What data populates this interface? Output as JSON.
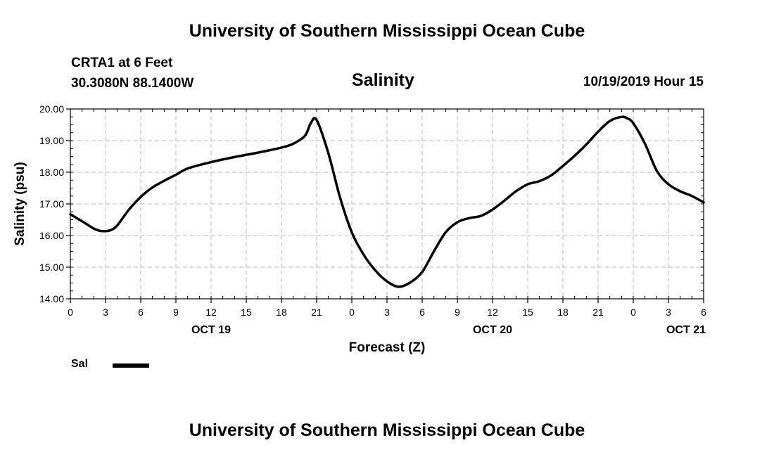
{
  "header": {
    "org_title": "University of Southern Mississippi Ocean Cube",
    "station_name": "CRTA1 at 6 Feet",
    "station_coords": "30.3080N 88.1400W",
    "chart_title": "Salinity",
    "issue_time": "10/19/2019 Hour 15"
  },
  "footer": {
    "org_title": "University of Southern Mississippi Ocean Cube"
  },
  "legend": {
    "label": "Sal"
  },
  "chart_data": {
    "type": "line",
    "title": "Salinity",
    "xlabel": "Forecast (Z)",
    "ylabel": "Salinity (psu)",
    "xlim": [
      0,
      54
    ],
    "ylim": [
      14.0,
      20.0
    ],
    "grid": true,
    "y_ticks": [
      "14.00",
      "15.00",
      "16.00",
      "17.00",
      "18.00",
      "19.00",
      "20.00"
    ],
    "x_ticks": [
      {
        "hour": 0,
        "label": "0"
      },
      {
        "hour": 3,
        "label": "3"
      },
      {
        "hour": 6,
        "label": "6"
      },
      {
        "hour": 9,
        "label": "9"
      },
      {
        "hour": 12,
        "label": "12"
      },
      {
        "hour": 15,
        "label": "15"
      },
      {
        "hour": 18,
        "label": "18"
      },
      {
        "hour": 21,
        "label": "21"
      },
      {
        "hour": 24,
        "label": "0"
      },
      {
        "hour": 27,
        "label": "3"
      },
      {
        "hour": 30,
        "label": "6"
      },
      {
        "hour": 33,
        "label": "9"
      },
      {
        "hour": 36,
        "label": "12"
      },
      {
        "hour": 39,
        "label": "15"
      },
      {
        "hour": 42,
        "label": "18"
      },
      {
        "hour": 45,
        "label": "21"
      },
      {
        "hour": 48,
        "label": "0"
      },
      {
        "hour": 51,
        "label": "3"
      },
      {
        "hour": 54,
        "label": "6"
      }
    ],
    "date_labels": [
      {
        "hour": 12,
        "label": "OCT 19"
      },
      {
        "hour": 36,
        "label": "OCT 20"
      },
      {
        "hour": 52.5,
        "label": "OCT 21"
      }
    ],
    "series": [
      {
        "name": "Sal",
        "x": [
          0,
          1,
          2,
          2.5,
          3,
          3.5,
          4,
          5,
          6,
          7,
          8,
          9,
          10,
          12,
          14,
          16,
          18,
          19,
          20,
          20.5,
          21,
          22,
          23,
          24,
          25,
          26,
          27,
          28,
          29,
          30,
          31,
          32,
          33,
          34,
          35,
          36,
          37,
          38,
          39,
          40,
          41,
          42,
          43,
          44,
          45,
          46,
          47,
          47.5,
          48,
          49,
          50,
          51,
          52,
          53,
          54
        ],
        "values": [
          16.67,
          16.45,
          16.22,
          16.15,
          16.14,
          16.18,
          16.32,
          16.82,
          17.22,
          17.52,
          17.73,
          17.92,
          18.12,
          18.32,
          18.48,
          18.62,
          18.78,
          18.9,
          19.15,
          19.55,
          19.65,
          18.6,
          17.2,
          16.1,
          15.4,
          14.9,
          14.55,
          14.38,
          14.52,
          14.85,
          15.5,
          16.1,
          16.42,
          16.55,
          16.62,
          16.82,
          17.1,
          17.4,
          17.62,
          17.72,
          17.9,
          18.2,
          18.52,
          18.88,
          19.28,
          19.62,
          19.75,
          19.7,
          19.55,
          18.9,
          18.05,
          17.62,
          17.4,
          17.25,
          17.05
        ]
      }
    ]
  }
}
